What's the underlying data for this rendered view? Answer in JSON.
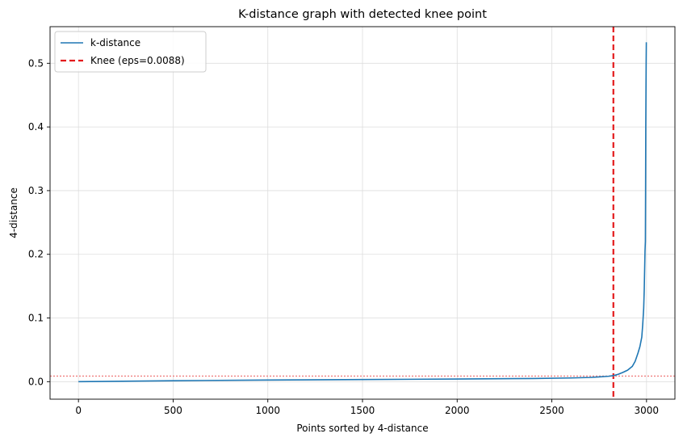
{
  "chart_data": {
    "type": "line",
    "title": "K-distance graph with detected knee point",
    "xlabel": "Points sorted by 4-distance",
    "ylabel": "4-distance",
    "xlim": [
      -150,
      3150
    ],
    "ylim": [
      -0.0275,
      0.5575
    ],
    "xticks": [
      0,
      500,
      1000,
      1500,
      2000,
      2500,
      3000
    ],
    "yticks": [
      0.0,
      0.1,
      0.2,
      0.3,
      0.4,
      0.5
    ],
    "xtick_labels": [
      "0",
      "500",
      "1000",
      "1500",
      "2000",
      "2500",
      "3000"
    ],
    "ytick_labels": [
      "0.0",
      "0.1",
      "0.2",
      "0.3",
      "0.4",
      "0.5"
    ],
    "grid": true,
    "legend_position": "top-left",
    "series": [
      {
        "name": "k-distance",
        "color": "#1f77b4",
        "style": "solid",
        "x": [
          0,
          500,
          1000,
          1500,
          2000,
          2400,
          2600,
          2700,
          2750,
          2800,
          2825,
          2850,
          2875,
          2900,
          2925,
          2940,
          2955,
          2965,
          2975,
          2980,
          2985,
          2988,
          2990,
          2992,
          2994,
          2995,
          2996,
          2997,
          2998,
          2999
        ],
        "values": [
          0.0,
          0.0015,
          0.0025,
          0.0033,
          0.0042,
          0.005,
          0.0058,
          0.0066,
          0.0075,
          0.0085,
          0.0095,
          0.0115,
          0.0145,
          0.018,
          0.024,
          0.032,
          0.045,
          0.055,
          0.07,
          0.09,
          0.115,
          0.145,
          0.175,
          0.205,
          0.22,
          0.3,
          0.4,
          0.45,
          0.5,
          0.533
        ]
      }
    ],
    "reference_lines": [
      {
        "name": "Knee (eps=0.0088)",
        "orientation": "vertical",
        "x": 2825,
        "color": "#e31a1c",
        "style": "dashed"
      },
      {
        "name": "eps level",
        "orientation": "horizontal",
        "y": 0.0088,
        "color": "#f08080",
        "style": "dotted"
      }
    ],
    "legend": [
      {
        "label": "k-distance",
        "color": "#1f77b4",
        "style": "solid"
      },
      {
        "label": "Knee (eps=0.0088)",
        "color": "#e31a1c",
        "style": "dashed"
      }
    ]
  }
}
